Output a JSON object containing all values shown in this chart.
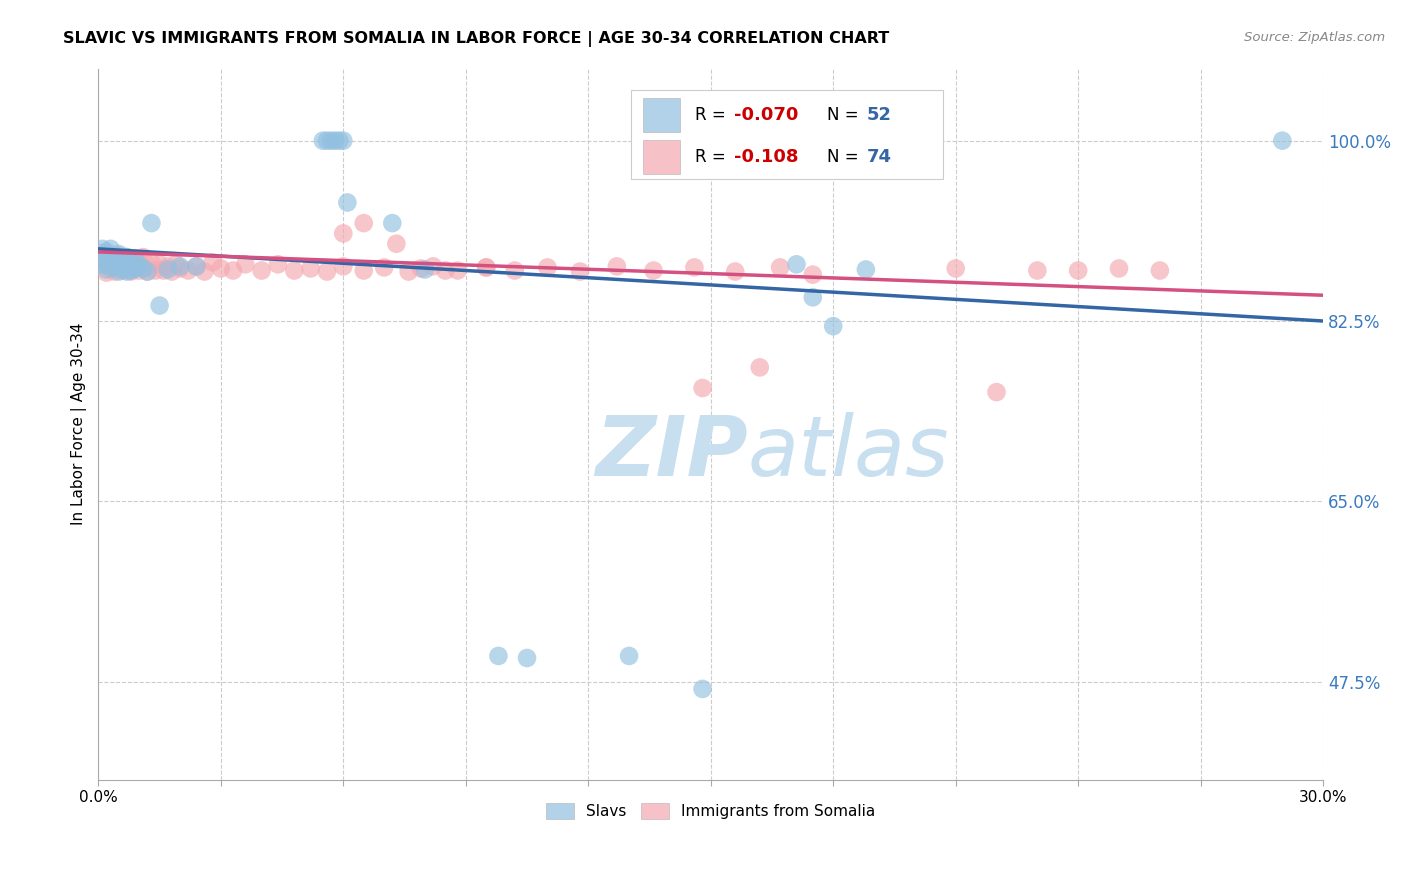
{
  "title": "SLAVIC VS IMMIGRANTS FROM SOMALIA IN LABOR FORCE | AGE 30-34 CORRELATION CHART",
  "source": "Source: ZipAtlas.com",
  "ylabel": "In Labor Force | Age 30-34",
  "xlim": [
    0.0,
    0.3
  ],
  "ylim": [
    0.38,
    1.07
  ],
  "yticks": [
    0.475,
    0.65,
    0.825,
    1.0
  ],
  "ytick_labels": [
    "47.5%",
    "65.0%",
    "82.5%",
    "100.0%"
  ],
  "xticks": [
    0.0,
    0.03,
    0.06,
    0.09,
    0.12,
    0.15,
    0.18,
    0.21,
    0.24,
    0.27,
    0.3
  ],
  "xtick_labels": [
    "0.0%",
    "",
    "",
    "",
    "",
    "",
    "",
    "",
    "",
    "",
    "30.0%"
  ],
  "blue_color": "#92c0e0",
  "pink_color": "#f4a8b0",
  "blue_line_color": "#3465a4",
  "pink_line_color": "#d45080",
  "watermark_color": "#c8dff0",
  "blue_trend_x0": 0.0,
  "blue_trend_y0": 0.895,
  "blue_trend_x1": 0.3,
  "blue_trend_y1": 0.825,
  "pink_trend_x0": 0.0,
  "pink_trend_y0": 0.892,
  "pink_trend_x1": 0.3,
  "pink_trend_y1": 0.85,
  "slavs_x": [
    0.001,
    0.001,
    0.001,
    0.002,
    0.002,
    0.002,
    0.003,
    0.003,
    0.003,
    0.004,
    0.004,
    0.005,
    0.005,
    0.005,
    0.006,
    0.006,
    0.007,
    0.007,
    0.008,
    0.008,
    0.009,
    0.009,
    0.01,
    0.011,
    0.012,
    0.013,
    0.015,
    0.017,
    0.02,
    0.024,
    0.055,
    0.056,
    0.057,
    0.058,
    0.059,
    0.06,
    0.061,
    0.072,
    0.08,
    0.098,
    0.105,
    0.13,
    0.148,
    0.171,
    0.175,
    0.18,
    0.188,
    0.29,
    0.004,
    0.006,
    0.007,
    0.009
  ],
  "slavs_y": [
    0.88,
    0.888,
    0.895,
    0.875,
    0.883,
    0.892,
    0.878,
    0.886,
    0.895,
    0.878,
    0.887,
    0.873,
    0.881,
    0.89,
    0.876,
    0.884,
    0.879,
    0.887,
    0.874,
    0.883,
    0.877,
    0.885,
    0.879,
    0.876,
    0.873,
    0.92,
    0.84,
    0.875,
    0.878,
    0.878,
    1.0,
    1.0,
    1.0,
    1.0,
    1.0,
    1.0,
    0.94,
    0.92,
    0.875,
    0.5,
    0.498,
    0.5,
    0.468,
    0.88,
    0.848,
    0.82,
    0.875,
    1.0,
    0.878,
    0.88,
    0.873,
    0.876
  ],
  "somalia_x": [
    0.001,
    0.001,
    0.002,
    0.002,
    0.003,
    0.003,
    0.004,
    0.004,
    0.005,
    0.005,
    0.006,
    0.006,
    0.007,
    0.007,
    0.008,
    0.008,
    0.009,
    0.009,
    0.01,
    0.01,
    0.011,
    0.011,
    0.012,
    0.013,
    0.014,
    0.015,
    0.016,
    0.017,
    0.018,
    0.019,
    0.02,
    0.022,
    0.024,
    0.026,
    0.028,
    0.03,
    0.033,
    0.036,
    0.04,
    0.044,
    0.048,
    0.052,
    0.056,
    0.06,
    0.065,
    0.07,
    0.076,
    0.082,
    0.088,
    0.095,
    0.102,
    0.11,
    0.118,
    0.127,
    0.136,
    0.146,
    0.156,
    0.167,
    0.06,
    0.065,
    0.073,
    0.079,
    0.085,
    0.095,
    0.148,
    0.162,
    0.175,
    0.21,
    0.22,
    0.23,
    0.24,
    0.25,
    0.26
  ],
  "somalia_y": [
    0.88,
    0.891,
    0.872,
    0.884,
    0.876,
    0.888,
    0.873,
    0.882,
    0.876,
    0.888,
    0.874,
    0.883,
    0.877,
    0.887,
    0.873,
    0.882,
    0.876,
    0.886,
    0.874,
    0.883,
    0.877,
    0.887,
    0.873,
    0.882,
    0.874,
    0.88,
    0.874,
    0.878,
    0.873,
    0.88,
    0.876,
    0.874,
    0.878,
    0.873,
    0.882,
    0.876,
    0.874,
    0.88,
    0.874,
    0.88,
    0.874,
    0.876,
    0.873,
    0.878,
    0.874,
    0.877,
    0.873,
    0.878,
    0.874,
    0.877,
    0.874,
    0.877,
    0.873,
    0.878,
    0.874,
    0.877,
    0.873,
    0.877,
    0.91,
    0.92,
    0.9,
    0.876,
    0.874,
    0.877,
    0.76,
    0.78,
    0.87,
    0.876,
    0.756,
    0.874,
    0.874,
    0.876,
    0.874
  ]
}
